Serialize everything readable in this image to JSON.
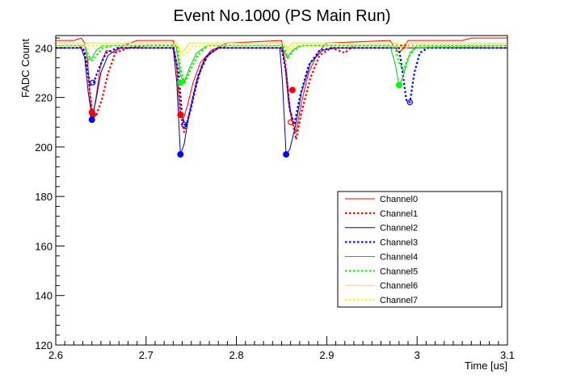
{
  "chart_data": {
    "type": "line",
    "title": "Event No.1000 (PS Main Run)",
    "xlabel": "Time [us]",
    "ylabel": "FADC Count",
    "xlim": [
      2.6,
      3.1
    ],
    "ylim": [
      120,
      245
    ],
    "x_ticks": [
      2.6,
      2.7,
      2.8,
      2.9,
      3.0,
      3.1
    ],
    "x_tick_labels": [
      "2.6",
      "2.7",
      "2.8",
      "2.9",
      "3",
      "3.1"
    ],
    "y_ticks": [
      120,
      140,
      160,
      180,
      200,
      220,
      240
    ],
    "y_tick_labels": [
      "120",
      "140",
      "160",
      "180",
      "200",
      "220",
      "240"
    ],
    "grid": false,
    "legend_position": "bottom-right",
    "series": [
      {
        "name": "Channel0",
        "color": "#ff0000",
        "style": "solid",
        "baseline": 243,
        "points": [
          [
            2.6,
            243
          ],
          [
            2.62,
            243
          ],
          [
            2.628,
            244
          ],
          [
            2.632,
            242
          ],
          [
            2.635,
            236
          ],
          [
            2.638,
            220
          ],
          [
            2.641,
            212
          ],
          [
            2.645,
            221
          ],
          [
            2.65,
            234
          ],
          [
            2.656,
            239
          ],
          [
            2.665,
            238
          ],
          [
            2.675,
            241
          ],
          [
            2.69,
            243
          ],
          [
            2.73,
            243
          ],
          [
            2.734,
            232
          ],
          [
            2.737,
            215
          ],
          [
            2.741,
            211
          ],
          [
            2.746,
            217
          ],
          [
            2.752,
            226
          ],
          [
            2.76,
            234
          ],
          [
            2.772,
            239
          ],
          [
            2.79,
            242
          ],
          [
            2.85,
            243
          ],
          [
            2.853,
            236
          ],
          [
            2.857,
            222
          ],
          [
            2.861,
            211
          ],
          [
            2.866,
            206
          ],
          [
            2.872,
            218
          ],
          [
            2.88,
            230
          ],
          [
            2.89,
            238
          ],
          [
            2.9,
            242
          ],
          [
            2.97,
            243
          ],
          [
            2.98,
            238
          ],
          [
            2.985,
            240
          ],
          [
            2.99,
            243
          ],
          [
            3.05,
            243
          ],
          [
            3.06,
            244
          ],
          [
            3.1,
            244
          ]
        ]
      },
      {
        "name": "Channel1",
        "color": "#ff0000",
        "style": "dotted",
        "baseline": 241,
        "points": [
          [
            2.6,
            241
          ],
          [
            2.625,
            241
          ],
          [
            2.632,
            239
          ],
          [
            2.636,
            228
          ],
          [
            2.64,
            215
          ],
          [
            2.645,
            213
          ],
          [
            2.651,
            219
          ],
          [
            2.658,
            230
          ],
          [
            2.666,
            238
          ],
          [
            2.68,
            240
          ],
          [
            2.7,
            241
          ],
          [
            2.73,
            241
          ],
          [
            2.734,
            233
          ],
          [
            2.738,
            214
          ],
          [
            2.742,
            206
          ],
          [
            2.747,
            212
          ],
          [
            2.753,
            222
          ],
          [
            2.762,
            233
          ],
          [
            2.772,
            239
          ],
          [
            2.79,
            241
          ],
          [
            2.85,
            241
          ],
          [
            2.854,
            234
          ],
          [
            2.858,
            218
          ],
          [
            2.862,
            210
          ],
          [
            2.866,
            203
          ],
          [
            2.872,
            214
          ],
          [
            2.882,
            228
          ],
          [
            2.892,
            237
          ],
          [
            2.905,
            240
          ],
          [
            2.92,
            238
          ],
          [
            2.93,
            241
          ],
          [
            3.0,
            241
          ],
          [
            3.1,
            241
          ]
        ]
      },
      {
        "name": "Channel2",
        "color": "#0000aa",
        "style": "solid",
        "baseline": 240,
        "points": [
          [
            2.6,
            240
          ],
          [
            2.628,
            240
          ],
          [
            2.632,
            236
          ],
          [
            2.636,
            222
          ],
          [
            2.64,
            212
          ],
          [
            2.644,
            218
          ],
          [
            2.65,
            230
          ],
          [
            2.658,
            237
          ],
          [
            2.67,
            240
          ],
          [
            2.73,
            240
          ],
          [
            2.734,
            226
          ],
          [
            2.738,
            197
          ],
          [
            2.742,
            201
          ],
          [
            2.748,
            214
          ],
          [
            2.756,
            227
          ],
          [
            2.765,
            236
          ],
          [
            2.78,
            240
          ],
          [
            2.848,
            240
          ],
          [
            2.851,
            226
          ],
          [
            2.855,
            197
          ],
          [
            2.859,
            199
          ],
          [
            2.865,
            208
          ],
          [
            2.872,
            222
          ],
          [
            2.882,
            234
          ],
          [
            2.895,
            239
          ],
          [
            2.91,
            240
          ],
          [
            3.1,
            240
          ]
        ]
      },
      {
        "name": "Channel3",
        "color": "#0000ff",
        "style": "dotted",
        "baseline": 240,
        "points": [
          [
            2.6,
            240
          ],
          [
            2.63,
            240
          ],
          [
            2.634,
            234
          ],
          [
            2.638,
            225
          ],
          [
            2.642,
            226
          ],
          [
            2.648,
            232
          ],
          [
            2.656,
            238
          ],
          [
            2.668,
            240
          ],
          [
            2.73,
            240
          ],
          [
            2.736,
            230
          ],
          [
            2.74,
            212
          ],
          [
            2.744,
            208
          ],
          [
            2.75,
            216
          ],
          [
            2.758,
            229
          ],
          [
            2.768,
            237
          ],
          [
            2.78,
            240
          ],
          [
            2.85,
            240
          ],
          [
            2.855,
            230
          ],
          [
            2.859,
            215
          ],
          [
            2.864,
            209
          ],
          [
            2.87,
            220
          ],
          [
            2.88,
            233
          ],
          [
            2.892,
            239
          ],
          [
            2.905,
            240
          ],
          [
            2.98,
            240
          ],
          [
            2.984,
            230
          ],
          [
            2.988,
            219
          ],
          [
            2.992,
            218
          ],
          [
            2.997,
            230
          ],
          [
            3.003,
            238
          ],
          [
            3.012,
            240
          ],
          [
            3.1,
            240
          ]
        ]
      },
      {
        "name": "Channel4",
        "color": "#00cc00",
        "style": "solid",
        "baseline": 241,
        "points": [
          [
            2.6,
            241
          ],
          [
            2.632,
            241
          ],
          [
            2.636,
            235
          ],
          [
            2.64,
            236
          ],
          [
            2.645,
            239
          ],
          [
            2.652,
            241
          ],
          [
            2.733,
            241
          ],
          [
            2.738,
            229
          ],
          [
            2.742,
            226
          ],
          [
            2.748,
            232
          ],
          [
            2.756,
            238
          ],
          [
            2.768,
            241
          ],
          [
            2.85,
            241
          ],
          [
            2.856,
            236
          ],
          [
            2.862,
            239
          ],
          [
            2.87,
            241
          ],
          [
            2.97,
            241
          ],
          [
            2.976,
            233
          ],
          [
            2.98,
            225
          ],
          [
            2.985,
            229
          ],
          [
            2.992,
            238
          ],
          [
            3.0,
            241
          ],
          [
            3.1,
            241
          ]
        ]
      },
      {
        "name": "Channel5",
        "color": "#00ff00",
        "style": "dotted",
        "baseline": 241,
        "points": [
          [
            2.6,
            241
          ],
          [
            2.632,
            241
          ],
          [
            2.636,
            237
          ],
          [
            2.64,
            235
          ],
          [
            2.645,
            237
          ],
          [
            2.652,
            240
          ],
          [
            2.665,
            241
          ],
          [
            2.734,
            241
          ],
          [
            2.739,
            230
          ],
          [
            2.743,
            226
          ],
          [
            2.749,
            231
          ],
          [
            2.757,
            237
          ],
          [
            2.768,
            241
          ],
          [
            2.852,
            241
          ],
          [
            2.857,
            236
          ],
          [
            2.863,
            239
          ],
          [
            2.872,
            241
          ],
          [
            2.975,
            241
          ],
          [
            2.98,
            234
          ],
          [
            2.985,
            231
          ],
          [
            2.99,
            236
          ],
          [
            2.998,
            240
          ],
          [
            3.1,
            241
          ]
        ]
      },
      {
        "name": "Channel6",
        "color": "#e6e600",
        "style": "solid",
        "baseline": 242,
        "points": [
          [
            2.6,
            242
          ],
          [
            2.734,
            242
          ],
          [
            2.738,
            238
          ],
          [
            2.742,
            239
          ],
          [
            2.748,
            242
          ],
          [
            2.852,
            242
          ],
          [
            2.857,
            240
          ],
          [
            2.862,
            242
          ],
          [
            2.978,
            242
          ],
          [
            2.982,
            240
          ],
          [
            2.987,
            242
          ],
          [
            3.1,
            242
          ]
        ]
      },
      {
        "name": "Channel7",
        "color": "#ffff00",
        "style": "dotted",
        "baseline": 241,
        "points": [
          [
            2.6,
            241
          ],
          [
            2.735,
            241
          ],
          [
            2.74,
            237
          ],
          [
            2.745,
            238
          ],
          [
            2.752,
            241
          ],
          [
            2.853,
            241
          ],
          [
            2.858,
            239
          ],
          [
            2.864,
            241
          ],
          [
            2.98,
            241
          ],
          [
            2.985,
            239
          ],
          [
            2.99,
            241
          ],
          [
            3.1,
            241
          ]
        ]
      }
    ],
    "markers": [
      {
        "series": "Channel0",
        "x": 2.641,
        "y": 213,
        "shape": "filled-circle",
        "color": "#ff0000"
      },
      {
        "series": "Channel1",
        "x": 2.64,
        "y": 214,
        "shape": "filled-circle",
        "color": "#ff0000"
      },
      {
        "series": "Channel2",
        "x": 2.64,
        "y": 211,
        "shape": "filled-circle",
        "color": "#0000ff"
      },
      {
        "series": "Channel3",
        "x": 2.641,
        "y": 226,
        "shape": "open-circle",
        "color": "#0000ff"
      },
      {
        "series": "Channel0",
        "x": 2.738,
        "y": 213,
        "shape": "filled-circle",
        "color": "#ff0000"
      },
      {
        "series": "Channel2",
        "x": 2.738,
        "y": 197,
        "shape": "filled-circle",
        "color": "#0000ff"
      },
      {
        "series": "Channel3",
        "x": 2.742,
        "y": 209,
        "shape": "open-circle",
        "color": "#0000ff"
      },
      {
        "series": "Channel4",
        "x": 2.738,
        "y": 226,
        "shape": "filled-circle",
        "color": "#00ff00"
      },
      {
        "series": "Channel0",
        "x": 2.862,
        "y": 223,
        "shape": "filled-circle",
        "color": "#ff0000"
      },
      {
        "series": "Channel2",
        "x": 2.855,
        "y": 197,
        "shape": "filled-circle",
        "color": "#0000ff"
      },
      {
        "series": "Channel1",
        "x": 2.86,
        "y": 210,
        "shape": "open-circle",
        "color": "#ff0000"
      },
      {
        "series": "Channel4",
        "x": 2.98,
        "y": 225,
        "shape": "filled-circle",
        "color": "#00ff00"
      },
      {
        "series": "Channel3",
        "x": 2.992,
        "y": 218,
        "shape": "open-circle",
        "color": "#0000ff"
      }
    ]
  }
}
